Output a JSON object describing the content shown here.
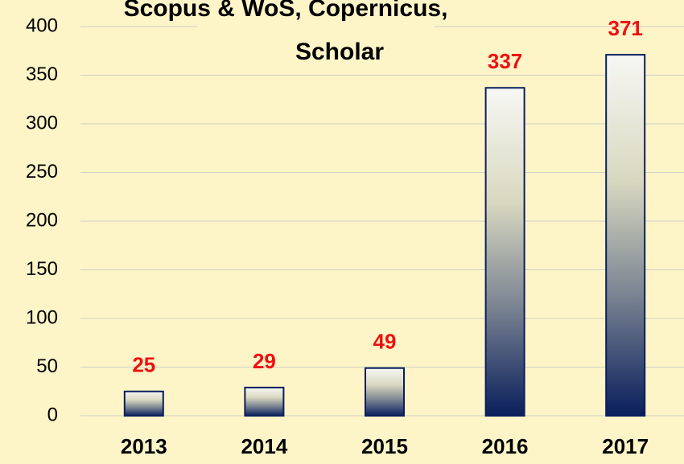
{
  "chart_data": {
    "type": "bar",
    "title": [
      "Scopus & WoS, Copernicus,",
      "Scholar"
    ],
    "categories": [
      "2013",
      "2014",
      "2015",
      "2016",
      "2017"
    ],
    "values": [
      25,
      29,
      49,
      337,
      371
    ],
    "color": "#0a1f5c",
    "value_label_color": "#ee1111",
    "ylim": [
      0,
      400
    ],
    "yticks": [
      0,
      50,
      100,
      150,
      200,
      250,
      300,
      350,
      400
    ],
    "grid": true
  }
}
